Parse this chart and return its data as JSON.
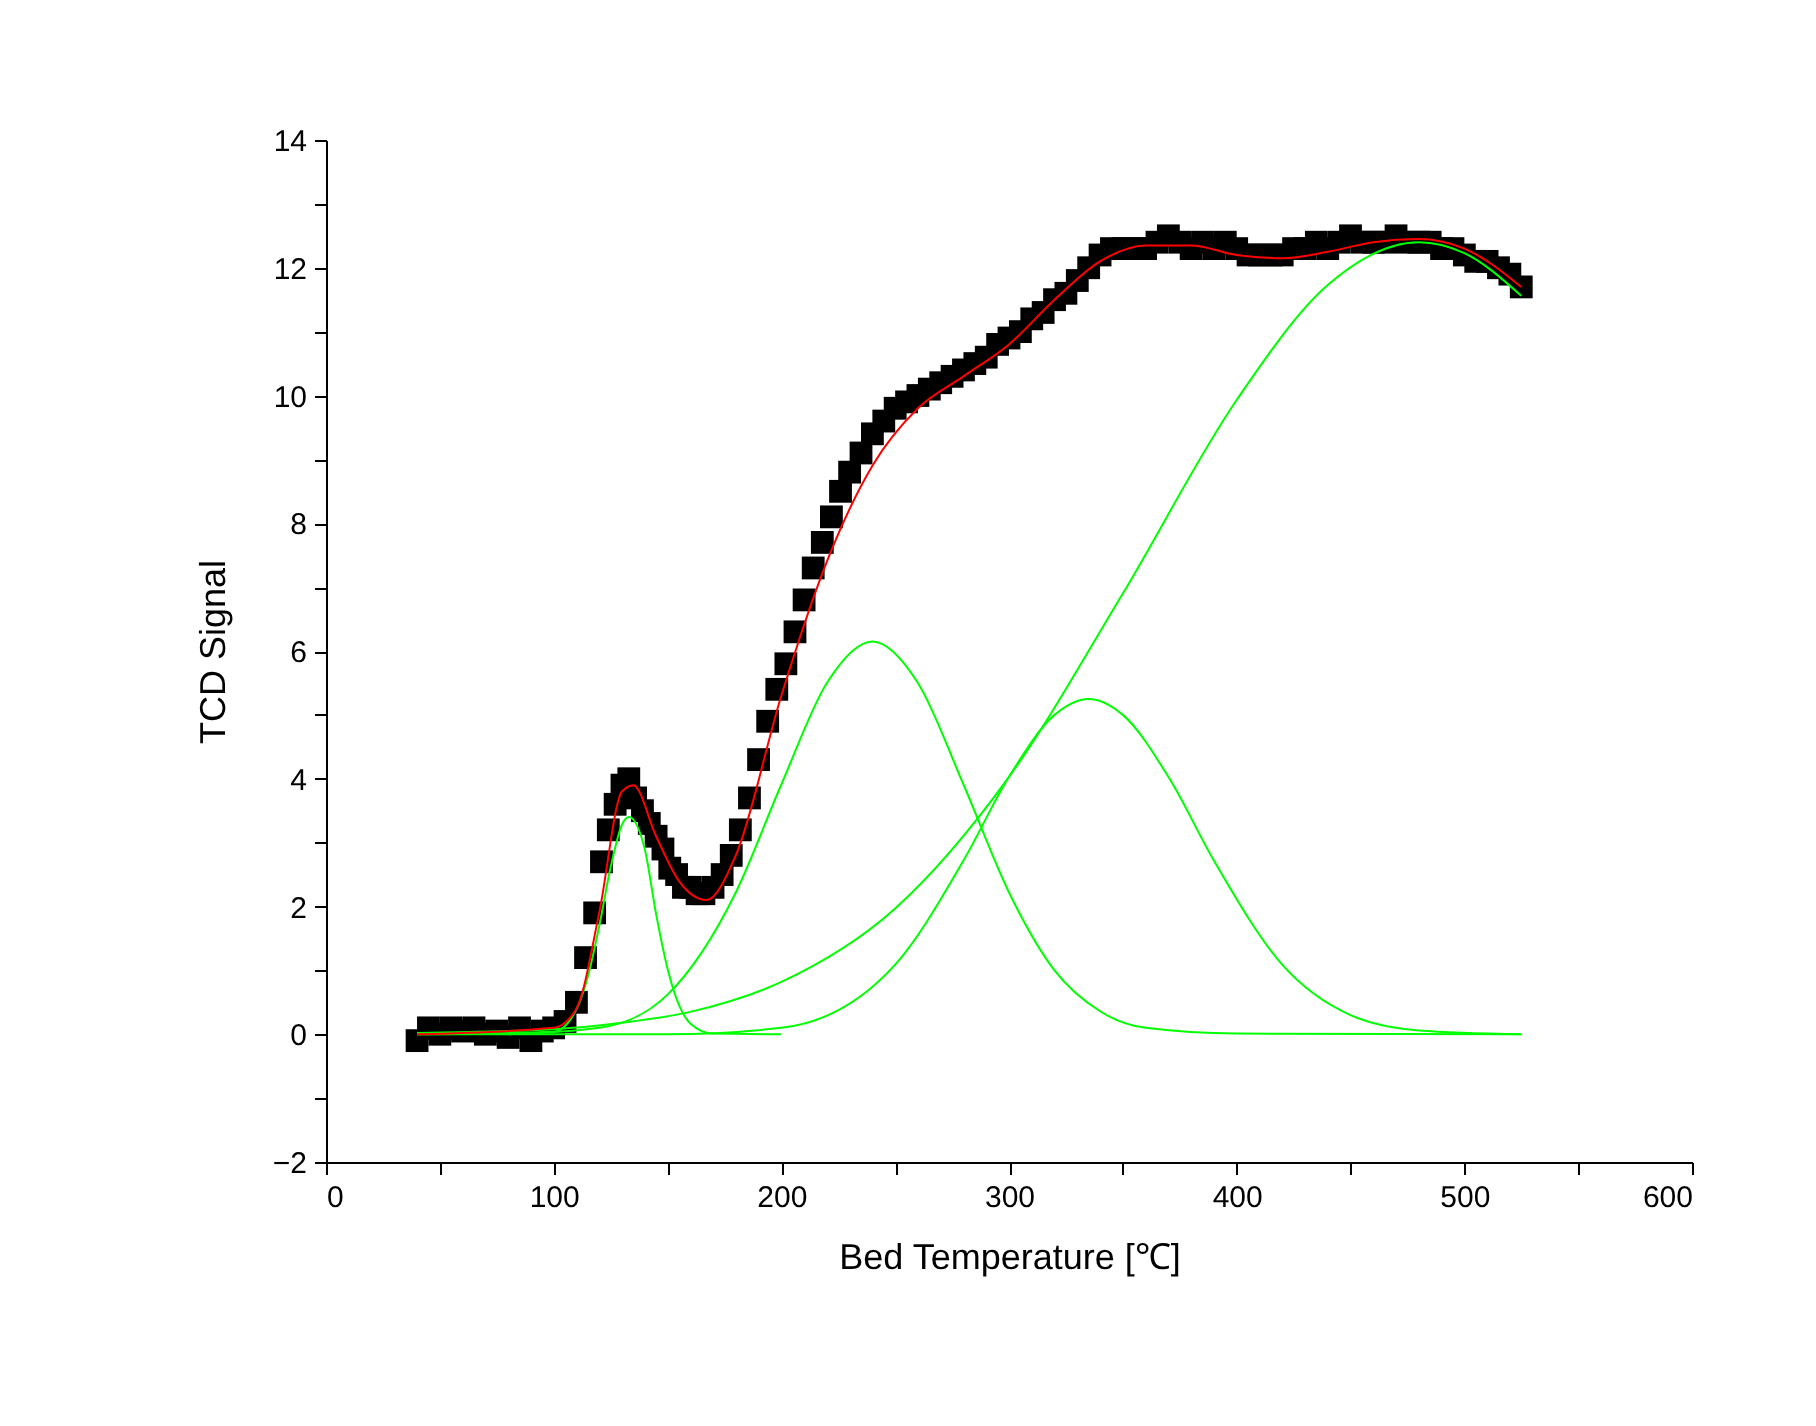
{
  "chart_data": {
    "type": "scatter",
    "xlabel": "Bed Temperature [℃]",
    "ylabel": "TCD Signal",
    "xlim": [
      0,
      600
    ],
    "xticks": [
      0,
      {
        "value": 50,
        "label": null
      },
      100,
      {
        "value": 150,
        "label": null
      },
      200,
      {
        "value": 250,
        "label": null
      },
      300,
      {
        "value": 350,
        "label": null
      },
      400,
      {
        "value": 450,
        "label": null
      },
      500,
      {
        "value": 550,
        "label": null
      },
      600
    ],
    "ylim": [
      -2,
      14
    ],
    "yticks": [
      -2,
      {
        "value": -1,
        "label": null
      },
      0,
      {
        "value": 1,
        "label": null
      },
      2,
      {
        "value": 3,
        "label": null
      },
      4,
      {
        "value": 5,
        "label": null
      },
      6,
      {
        "value": 7,
        "label": null
      },
      8,
      {
        "value": 9,
        "label": null
      },
      10,
      {
        "value": 11,
        "label": null
      },
      12,
      {
        "value": 13,
        "label": null
      },
      14
    ],
    "grid": false,
    "series": [
      {
        "marker": "square",
        "color": "#000000",
        "x": [
          40,
          45,
          50,
          55,
          60,
          65,
          70,
          75,
          80,
          85,
          90,
          95,
          100,
          105,
          110,
          114,
          118,
          121,
          124,
          127,
          130,
          133,
          136,
          139,
          142,
          145,
          148,
          151,
          154,
          157,
          160,
          163,
          166,
          170,
          174,
          178,
          182,
          186,
          190,
          194,
          198,
          202,
          206,
          210,
          214,
          218,
          222,
          226,
          230,
          235,
          240,
          245,
          250,
          255,
          260,
          265,
          270,
          275,
          280,
          285,
          290,
          295,
          300,
          305,
          310,
          315,
          320,
          325,
          330,
          335,
          340,
          345,
          350,
          355,
          360,
          365,
          370,
          375,
          380,
          385,
          390,
          395,
          400,
          405,
          410,
          415,
          420,
          425,
          430,
          435,
          440,
          445,
          450,
          455,
          460,
          465,
          470,
          475,
          480,
          485,
          490,
          495,
          500,
          505,
          510,
          515,
          520,
          525
        ],
        "values": [
          -0.1,
          0.1,
          0.0,
          0.1,
          0.05,
          0.1,
          0.0,
          0.05,
          -0.05,
          0.1,
          -0.1,
          0.05,
          0.1,
          0.2,
          0.5,
          1.2,
          1.9,
          2.7,
          3.2,
          3.6,
          3.9,
          4.0,
          3.7,
          3.5,
          3.3,
          3.1,
          2.9,
          2.6,
          2.5,
          2.3,
          2.3,
          2.2,
          2.2,
          2.3,
          2.5,
          2.8,
          3.2,
          3.7,
          4.3,
          4.9,
          5.4,
          5.8,
          6.3,
          6.8,
          7.3,
          7.7,
          8.1,
          8.5,
          8.8,
          9.1,
          9.4,
          9.6,
          9.8,
          9.9,
          10.0,
          10.1,
          10.2,
          10.3,
          10.4,
          10.5,
          10.6,
          10.8,
          10.9,
          11.0,
          11.2,
          11.3,
          11.5,
          11.6,
          11.8,
          12.0,
          12.2,
          12.3,
          12.3,
          12.3,
          12.3,
          12.4,
          12.5,
          12.4,
          12.3,
          12.4,
          12.3,
          12.4,
          12.3,
          12.2,
          12.2,
          12.2,
          12.2,
          12.3,
          12.3,
          12.4,
          12.3,
          12.4,
          12.5,
          12.4,
          12.4,
          12.4,
          12.5,
          12.4,
          12.4,
          12.4,
          12.3,
          12.3,
          12.2,
          12.1,
          12.1,
          12.0,
          11.9,
          11.7
        ]
      },
      {
        "type": "line",
        "color": "#00ff00",
        "x": [
          40,
          100,
          110,
          115,
          120,
          125,
          130,
          133,
          140,
          145,
          150,
          160,
          170,
          200
        ],
        "values": [
          0,
          0.04,
          0.39,
          0.9,
          1.69,
          2.61,
          3.28,
          3.4,
          2.9,
          1.88,
          1.03,
          0.17,
          0.01,
          0
        ]
      },
      {
        "type": "line",
        "color": "#00ff00",
        "x": [
          80,
          120,
          150,
          180,
          200,
          220,
          240,
          260,
          280,
          300,
          320,
          340,
          360,
          400,
          525
        ],
        "values": [
          0,
          0.1,
          0.62,
          2.22,
          3.91,
          5.5,
          6.15,
          5.5,
          3.91,
          2.22,
          1.0,
          0.36,
          0.1,
          0.01,
          0
        ]
      },
      {
        "type": "line",
        "color": "#00ff00",
        "x": [
          40,
          150,
          200,
          250,
          280,
          300,
          320,
          335,
          350,
          370,
          390,
          420,
          450,
          480,
          525
        ],
        "values": [
          0,
          0,
          0.1,
          1.09,
          2.72,
          4.03,
          5.0,
          5.25,
          5.0,
          4.03,
          2.72,
          1.09,
          0.3,
          0.06,
          0
        ]
      },
      {
        "type": "line",
        "color": "#00ff00",
        "x": [
          40,
          100,
          130,
          160,
          200,
          250,
          300,
          350,
          400,
          440,
          480,
          500,
          525
        ],
        "values": [
          0.02,
          0.08,
          0.18,
          0.35,
          0.82,
          1.97,
          4.03,
          6.9,
          9.93,
          11.73,
          12.4,
          12.23,
          11.56
        ]
      },
      {
        "type": "line",
        "color": "#ff0000",
        "x": [
          40,
          100,
          110,
          120,
          130,
          135,
          145,
          155,
          167,
          180,
          200,
          220,
          240,
          260,
          280,
          300,
          320,
          340,
          360,
          380,
          400,
          420,
          440,
          460,
          480,
          500,
          525
        ],
        "values": [
          0,
          0.1,
          0.4,
          1.9,
          3.8,
          3.9,
          3.1,
          2.4,
          2.1,
          2.8,
          5.3,
          7.4,
          8.9,
          9.8,
          10.3,
          10.8,
          11.5,
          12.1,
          12.35,
          12.35,
          12.2,
          12.15,
          12.25,
          12.4,
          12.45,
          12.3,
          11.7
        ]
      }
    ]
  }
}
